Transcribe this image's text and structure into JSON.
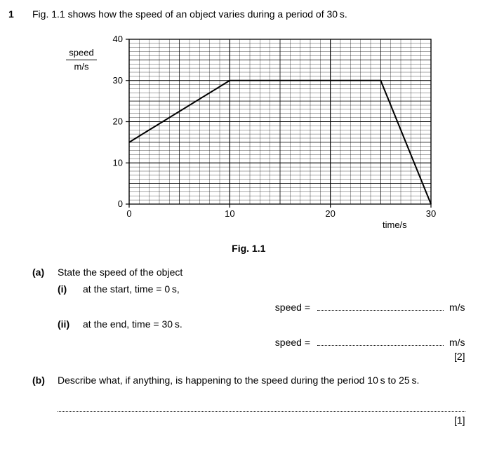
{
  "question_number": "1",
  "intro_text": "Fig. 1.1 shows how the speed of an object varies during a period of 30 s.",
  "chart": {
    "type": "line",
    "y_axis_label_top": "speed",
    "y_axis_label_bottom": "m/s",
    "x_axis_label": "time/s",
    "xlim": [
      0,
      30
    ],
    "ylim": [
      0,
      40
    ],
    "x_major_ticks": [
      0,
      10,
      20,
      30
    ],
    "y_major_ticks": [
      0,
      10,
      20,
      30,
      40
    ],
    "x_minor_step": 1,
    "y_minor_step": 1,
    "minor_grid_color": "#000000",
    "major_grid_color": "#000000",
    "minor_grid_width": 0.35,
    "major_grid_width": 1.1,
    "background_color": "#ffffff",
    "line_color": "#000000",
    "line_width": 2,
    "tick_fontsize": 13,
    "label_fontsize": 13,
    "data_points": [
      {
        "x": 0,
        "y": 15
      },
      {
        "x": 10,
        "y": 30
      },
      {
        "x": 25,
        "y": 30
      },
      {
        "x": 30,
        "y": 0
      }
    ]
  },
  "caption": "Fig. 1.1",
  "part_a": {
    "label": "(a)",
    "text": "State the speed of the object",
    "sub_i": {
      "label": "(i)",
      "text": "at the start, time = 0 s,",
      "answer_prefix": "speed =",
      "unit": "m/s"
    },
    "sub_ii": {
      "label": "(ii)",
      "text": "at the end, time = 30 s.",
      "answer_prefix": "speed =",
      "unit": "m/s"
    },
    "marks": "[2]"
  },
  "part_b": {
    "label": "(b)",
    "text": "Describe what, if anything, is happening to the speed during the period 10 s to 25 s.",
    "marks": "[1]"
  }
}
